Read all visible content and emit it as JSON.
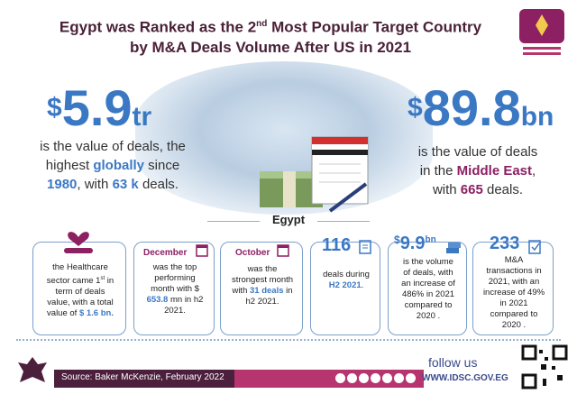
{
  "title": {
    "line1_pre": "Egypt was Ranked as the 2",
    "line1_sup": "nd",
    "line1_post": " Most Popular Target Country",
    "line2": "by M&A Deals Volume After US in 2021"
  },
  "global_stat": {
    "currency": "$",
    "value": "5.9",
    "unit": "tr",
    "desc_1": "is the value of deals, the",
    "desc_2_pre": "highest ",
    "desc_2_bold": "globally",
    "desc_2_post": " since",
    "desc_3_bold": "1980",
    "desc_3_mid": ", with ",
    "desc_3_bold2": "63 k",
    "desc_3_post": " deals."
  },
  "mideast_stat": {
    "currency": "$",
    "value": "89.8",
    "unit": "bn",
    "desc_1": "is the value of deals",
    "desc_2_pre": "in the ",
    "desc_2_bold": "Middle East",
    "desc_2_post": ",",
    "desc_3_pre": "with ",
    "desc_3_bold": "665",
    "desc_3_post": " deals."
  },
  "egypt_label": "Egypt",
  "cards": [
    {
      "text_1": "the Healthcare",
      "text_2": "sector came 1",
      "text_2_sup": "st",
      "text_2_post": " in",
      "text_3": "term of deals",
      "text_4": "value, with a total",
      "text_5_pre": "value of ",
      "text_5_bold": "$ 1.6 bn."
    },
    {
      "head": "December",
      "text_1": "was the top",
      "text_2": "performing",
      "text_3": "month with $",
      "text_4_bold": "653.8",
      "text_4_post": " mn in h2",
      "text_5": "2021."
    },
    {
      "head": "October",
      "text_1": "was the",
      "text_2": "strongest month",
      "text_3_pre": "with ",
      "text_3_bold": "31 deals",
      "text_3_post": " in",
      "text_4": "h2 2021."
    },
    {
      "head": "116",
      "text_1": "deals during",
      "text_2_bold": "H2 2021",
      "text_2_post": "."
    },
    {
      "head_cur": "$",
      "head": "9.9",
      "head_unit": "bn",
      "text_1": "is the volume",
      "text_2": "of deals, with",
      "text_3": "an increase of",
      "text_4": "486% in 2021",
      "text_5": "compared to",
      "text_6": "2020 ."
    },
    {
      "head": "233",
      "text_1": "M&A",
      "text_2": "transactions in",
      "text_3": "2021, with an",
      "text_4": "increase of 49%",
      "text_5": "in 2021",
      "text_6": "compared to",
      "text_7": "2020 ."
    }
  ],
  "footer": {
    "source": "Source: Baker McKenzie, February 2022",
    "follow": "follow us",
    "site": "WWW.IDSC.GOV.EG"
  },
  "colors": {
    "accent_blue": "#3b78c4",
    "accent_magenta": "#8d1f63",
    "title_purple": "#4a2138"
  }
}
